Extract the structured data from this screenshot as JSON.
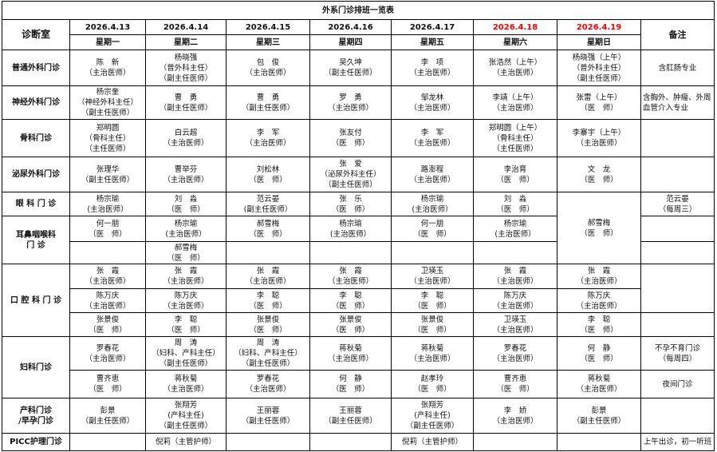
{
  "title": "外系门诊排班一览表",
  "header": {
    "room_label": "诊断室",
    "remark_label": "备注",
    "dates": [
      "2026.4.13",
      "2026.4.14",
      "2026.4.15",
      "2026.4.16",
      "2026.4.17",
      "2026.4.18",
      "2026.4.19"
    ],
    "weekdays": [
      "星期一",
      "星期二",
      "星期三",
      "星期四",
      "星期五",
      "星期六",
      "星期日"
    ],
    "weekend_color": "#ff0000"
  },
  "departments": [
    {
      "name": "普通外科门诊",
      "rows": [
        [
          "陈　新\n（主治医师）",
          "杨晓强\n（普外科主任）\n（副主任医师）",
          "包　俊\n（主治医师）",
          "吴久坤\n（副主任医师）",
          "李　项\n（主治医师）",
          "张浩然（上午）\n（主治医师）",
          "杨晓强（上午）\n（普外科主任）\n（副主任医师）"
        ]
      ],
      "remarks": [
        "含肛肠专业"
      ]
    },
    {
      "name": "神经外科门诊",
      "rows": [
        [
          "杨宗奎\n（神经外科主任）\n（副主任医师）",
          "曹　勇\n（副主任医师）",
          "曹　勇\n（副主任医师）",
          "罗　勇\n（主治医师）",
          "邹龙林\n（主治医师）",
          "李靖（上午）\n（主治医师）",
          "张雷（上午）\n（医　师）"
        ]
      ],
      "remarks": [
        "含胸外、肿瘤、外周血管介入专业"
      ]
    },
    {
      "name": "骨科门诊",
      "rows": [
        [
          "郑明圆\n（骨科主任）\n（主任医师）",
          "白云超\n（主治医师）",
          "李　军\n（主治医师）",
          "张友付\n（医　师）",
          "李　军\n（主治医师）",
          "郑明圆（上午）\n（骨科主任）\n（主任医师）",
          "李寨宇（上午）\n（主治医师）"
        ]
      ],
      "remarks": [
        ""
      ]
    },
    {
      "name": "泌尿外科门诊",
      "rows": [
        [
          "张理华\n（副主任医师）",
          "曹举芬\n（主治医师）",
          "刘松林\n（医　师）",
          "张　爱\n（泌尿外科主任）\n（副主任医师）",
          "路澎程\n（主治医师）",
          "李治育\n（医　师）",
          "文　龙\n（医　师）"
        ]
      ],
      "remarks": [
        ""
      ]
    },
    {
      "name": "眼 科 门 诊",
      "rows": [
        [
          "杨宗瑜\n(主治医师）",
          "刘　淼\n（医　师）",
          "范云晏\n(副主任医师）",
          "张　乐\n（医　师）",
          "杨宗瑜\n(主治医师）",
          "刘　淼\n（医　师）",
          "郝雪梅\n（医　师）"
        ]
      ],
      "remarks": [
        "范云晏\n（每周三）"
      ]
    },
    {
      "name": "耳鼻咽喉科\n门 诊",
      "rows": [
        [
          "何一朋\n（医　师）",
          "杨宗瑜\n(主治医师）",
          "郝雪梅\n（医　师）",
          "杨宗瑜\n(主治医师）",
          "何一朋\n（医　师）",
          "杨宗瑜\n(主治医师）",
          null
        ],
        [
          "",
          "郝雪梅\n（医　师）",
          "",
          "",
          "",
          "",
          null
        ]
      ],
      "remarks": [
        "",
        ""
      ]
    },
    {
      "name": "口 腔 科 门 诊",
      "rows": [
        [
          "张　霞\n（主治医师）",
          "张　霞\n（主治医师）",
          "张　霞\n（主治医师）",
          "张　霞\n（主治医师）",
          "卫瑛玉\n（主治医师）",
          "张　霞\n（主治医师）",
          "张　霞\n（主治医师）"
        ],
        [
          "陈万庆\n（主治医师）",
          "陈万庆\n（主治医师）",
          "李　聪\n（医　师）",
          "李　聪\n（医　师）",
          "李　聪\n（医　师）",
          "陈万庆\n（主治医师）",
          "陈万庆\n（主治医师）"
        ],
        [
          "张景俊\n（医　师）",
          "李　聪\n（医　师）",
          "张景俊\n（医　师）",
          "张景俊\n（医　师）",
          "张景俊\n（医　师）",
          "卫瑛玉\n（主治医师）",
          "李　聪\n（医　师）"
        ]
      ],
      "remarks": [
        "",
        null,
        ""
      ]
    },
    {
      "name": "妇科门诊",
      "rows": [
        [
          "罗春花\n（主治医师）",
          "周　涛\n（妇科、产科主任）\n（副主任医师）",
          "周　涛\n（妇科、产科主任）\n（副主任医师）",
          "蒋秋菊\n（主治医师）",
          "蒋秋菊\n（主治医师）",
          "罗春花\n（主治医师）",
          "何　静\n（医　师）"
        ],
        [
          "曹齐恵\n（医　师）",
          "蒋秋菊\n（主治医师）",
          "罗春花\n（主治医师）",
          "何　静\n（医　师）",
          "赵孝玲\n（医　师）",
          "曹齐恵\n（医　师）",
          "蒋秋菊\n（主治医师）"
        ]
      ],
      "remarks": [
        "不孕不育门诊\n（每周四）",
        "夜间门诊"
      ]
    },
    {
      "name": "产科门诊\n/早孕门诊",
      "rows": [
        [
          "彭景\n（副主任医师）",
          "张翔芳\n(产科主任)\n（副主任医师）",
          "王丽蓉\n（副主任医师）",
          "王丽蓉\n（副主任医师）",
          "张翔芳\n(产科主任)\n（副主任医师）",
          "李　娇\n（主治医师）",
          "彭景\n（副主任医师）"
        ]
      ],
      "remarks": [
        ""
      ]
    },
    {
      "name": "PICC护理门诊",
      "rows": [
        [
          "",
          "倪莉（主管护师）",
          "",
          "",
          "倪莉（主管护师）",
          "",
          ""
        ]
      ],
      "remarks": [
        "上午出诊，初一听班"
      ]
    }
  ]
}
